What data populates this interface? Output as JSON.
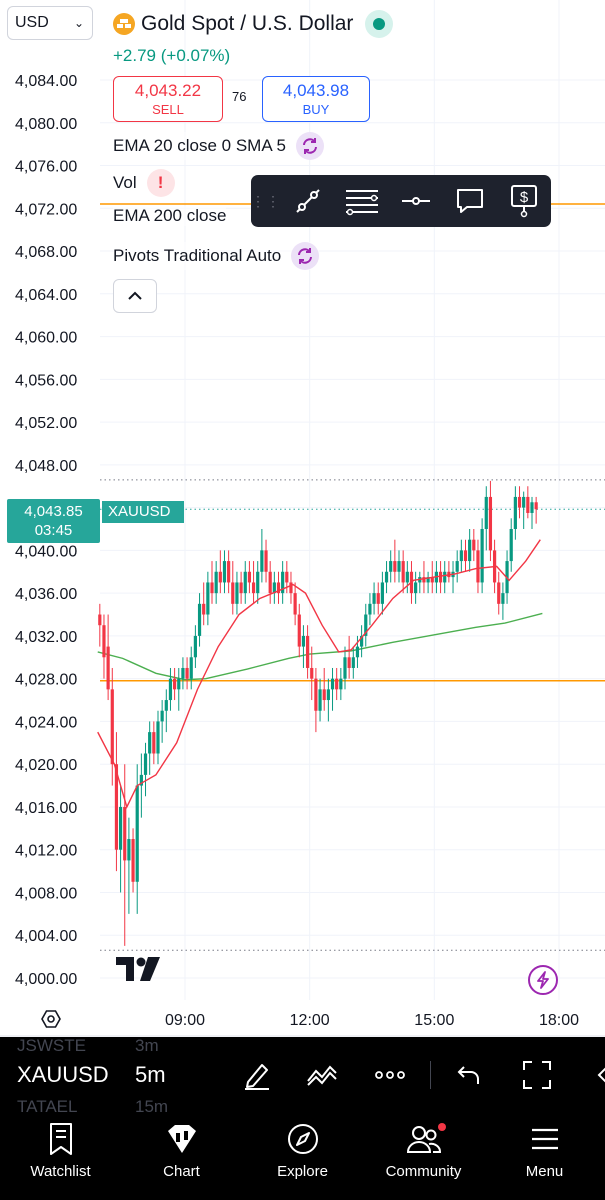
{
  "header": {
    "currency": "USD",
    "title": "Gold Spot / U.S. Dollar",
    "change": "+2.79 (+0.07%)",
    "sell": {
      "price": "4,043.22",
      "label": "SELL"
    },
    "spread": "76",
    "buy": {
      "price": "4,043.98",
      "label": "BUY"
    }
  },
  "indicators": [
    {
      "label": "EMA 20 close 0 SMA 5"
    },
    {
      "label": "Vol"
    },
    {
      "label": "EMA 200 close"
    },
    {
      "label": "Pivots Traditional Auto"
    }
  ],
  "current_price": {
    "price": "4,043.85",
    "countdown": "03:45",
    "symbol": "XAUUSD"
  },
  "colors": {
    "up": "#089981",
    "down": "#f23645",
    "ema20": "#f23645",
    "ema200": "#4caf50",
    "pivot": "#ff9800",
    "accent": "#2962ff"
  },
  "chart_data": {
    "type": "candlestick",
    "symbol": "XAUUSD",
    "y_ticks": [
      "4,084.00",
      "4,080.00",
      "4,076.00",
      "4,072.00",
      "4,068.00",
      "4,064.00",
      "4,060.00",
      "4,056.00",
      "4,052.00",
      "4,048.00",
      "4,044.00",
      "4,040.00",
      "4,036.00",
      "4,032.00",
      "4,028.00",
      "4,024.00",
      "4,020.00",
      "4,016.00",
      "4,012.00",
      "4,008.00",
      "4,004.00",
      "4,000.00"
    ],
    "y_tick_values": [
      4084,
      4080,
      4076,
      4072,
      4068,
      4064,
      4060,
      4056,
      4052,
      4048,
      4044,
      4040,
      4036,
      4032,
      4028,
      4024,
      4020,
      4016,
      4012,
      4008,
      4004,
      4000
    ],
    "ylim": [
      3998,
      4086
    ],
    "x_ticks": [
      "09:00",
      "12:00",
      "15:00",
      "18:00"
    ],
    "x_tick_hours": [
      9,
      12,
      15,
      18
    ],
    "xlim": [
      6.9,
      18.1
    ],
    "pivot_levels": [
      4072.4,
      4027.8
    ],
    "dotted_levels": [
      4046.6,
      4043.85,
      4002.6
    ],
    "ema200": [
      [
        6.9,
        4030.5
      ],
      [
        7.5,
        4029.9
      ],
      [
        8.3,
        4028.5
      ],
      [
        9.0,
        4027.9
      ],
      [
        9.5,
        4028.0
      ],
      [
        10.5,
        4028.9
      ],
      [
        11.5,
        4029.9
      ],
      [
        12.0,
        4030.3
      ],
      [
        13.0,
        4030.6
      ],
      [
        14.0,
        4031.4
      ],
      [
        15.0,
        4032.1
      ],
      [
        16.0,
        4032.8
      ],
      [
        16.7,
        4033.2
      ],
      [
        17.6,
        4034.1
      ]
    ],
    "ema20": [
      [
        6.9,
        4023
      ],
      [
        7.3,
        4020
      ],
      [
        7.6,
        4016
      ],
      [
        7.85,
        4018
      ],
      [
        8.3,
        4019
      ],
      [
        8.8,
        4022
      ],
      [
        9.3,
        4027
      ],
      [
        9.8,
        4031
      ],
      [
        10.3,
        4034
      ],
      [
        10.8,
        4035.5
      ],
      [
        11.3,
        4036.3
      ],
      [
        11.6,
        4036.8
      ],
      [
        11.9,
        4036
      ],
      [
        12.3,
        4033
      ],
      [
        12.7,
        4030.5
      ],
      [
        13.0,
        4030.7
      ],
      [
        13.5,
        4033
      ],
      [
        14.0,
        4035.5
      ],
      [
        14.5,
        4037.2
      ],
      [
        15.0,
        4037.5
      ],
      [
        15.5,
        4037.8
      ],
      [
        16.0,
        4038.3
      ],
      [
        16.5,
        4038.5
      ],
      [
        16.8,
        4037.2
      ],
      [
        17.2,
        4039
      ],
      [
        17.55,
        4041
      ]
    ],
    "candles": [
      {
        "t": 6.95,
        "o": 4034,
        "h": 4035,
        "l": 4031,
        "c": 4033
      },
      {
        "t": 7.05,
        "o": 4033,
        "h": 4034,
        "l": 4028,
        "c": 4030
      },
      {
        "t": 7.15,
        "o": 4031,
        "h": 4034,
        "l": 4026,
        "c": 4027
      },
      {
        "t": 7.25,
        "o": 4027,
        "h": 4029,
        "l": 4018,
        "c": 4020
      },
      {
        "t": 7.35,
        "o": 4020,
        "h": 4023,
        "l": 4010,
        "c": 4012
      },
      {
        "t": 7.45,
        "o": 4012,
        "h": 4018,
        "l": 4008,
        "c": 4016
      },
      {
        "t": 7.55,
        "o": 4016,
        "h": 4020,
        "l": 4003,
        "c": 4011
      },
      {
        "t": 7.65,
        "o": 4011,
        "h": 4015,
        "l": 4006,
        "c": 4013
      },
      {
        "t": 7.75,
        "o": 4013,
        "h": 4014,
        "l": 4008,
        "c": 4009
      },
      {
        "t": 7.85,
        "o": 4009,
        "h": 4020,
        "l": 4006,
        "c": 4018
      },
      {
        "t": 7.95,
        "o": 4018,
        "h": 4021,
        "l": 4015,
        "c": 4019
      },
      {
        "t": 8.05,
        "o": 4019,
        "h": 4022,
        "l": 4017,
        "c": 4021
      },
      {
        "t": 8.15,
        "o": 4021,
        "h": 4024,
        "l": 4019,
        "c": 4023
      },
      {
        "t": 8.25,
        "o": 4023,
        "h": 4024,
        "l": 4020,
        "c": 4021
      },
      {
        "t": 8.35,
        "o": 4021,
        "h": 4025,
        "l": 4020,
        "c": 4024
      },
      {
        "t": 8.45,
        "o": 4024,
        "h": 4026,
        "l": 4022,
        "c": 4025
      },
      {
        "t": 8.55,
        "o": 4025,
        "h": 4027,
        "l": 4023,
        "c": 4026
      },
      {
        "t": 8.65,
        "o": 4026,
        "h": 4029,
        "l": 4025,
        "c": 4028
      },
      {
        "t": 8.75,
        "o": 4028,
        "h": 4029,
        "l": 4026,
        "c": 4027
      },
      {
        "t": 8.85,
        "o": 4027,
        "h": 4029,
        "l": 4025,
        "c": 4028
      },
      {
        "t": 8.95,
        "o": 4028,
        "h": 4030,
        "l": 4027,
        "c": 4029
      },
      {
        "t": 9.05,
        "o": 4029,
        "h": 4030,
        "l": 4027,
        "c": 4028
      },
      {
        "t": 9.15,
        "o": 4028,
        "h": 4031,
        "l": 4027,
        "c": 4030
      },
      {
        "t": 9.25,
        "o": 4030,
        "h": 4033,
        "l": 4029,
        "c": 4032
      },
      {
        "t": 9.35,
        "o": 4032,
        "h": 4036,
        "l": 4031,
        "c": 4035
      },
      {
        "t": 9.45,
        "o": 4035,
        "h": 4037,
        "l": 4033,
        "c": 4034
      },
      {
        "t": 9.55,
        "o": 4034,
        "h": 4038,
        "l": 4033,
        "c": 4037
      },
      {
        "t": 9.65,
        "o": 4037,
        "h": 4039,
        "l": 4035,
        "c": 4036
      },
      {
        "t": 9.75,
        "o": 4036,
        "h": 4039,
        "l": 4035,
        "c": 4038
      },
      {
        "t": 9.85,
        "o": 4038,
        "h": 4040,
        "l": 4036,
        "c": 4037
      },
      {
        "t": 9.95,
        "o": 4037,
        "h": 4040,
        "l": 4036,
        "c": 4039
      },
      {
        "t": 10.05,
        "o": 4039,
        "h": 4040,
        "l": 4036,
        "c": 4037
      },
      {
        "t": 10.15,
        "o": 4037,
        "h": 4039,
        "l": 4034,
        "c": 4035
      },
      {
        "t": 10.25,
        "o": 4035,
        "h": 4038,
        "l": 4034,
        "c": 4037
      },
      {
        "t": 10.35,
        "o": 4037,
        "h": 4038,
        "l": 4035,
        "c": 4036
      },
      {
        "t": 10.45,
        "o": 4036,
        "h": 4039,
        "l": 4035,
        "c": 4038
      },
      {
        "t": 10.55,
        "o": 4038,
        "h": 4039,
        "l": 4036,
        "c": 4037
      },
      {
        "t": 10.65,
        "o": 4037,
        "h": 4039,
        "l": 4035,
        "c": 4036
      },
      {
        "t": 10.75,
        "o": 4036,
        "h": 4039,
        "l": 4035,
        "c": 4038
      },
      {
        "t": 10.85,
        "o": 4038,
        "h": 4042,
        "l": 4037,
        "c": 4040
      },
      {
        "t": 10.95,
        "o": 4040,
        "h": 4041,
        "l": 4037,
        "c": 4038
      },
      {
        "t": 11.05,
        "o": 4038,
        "h": 4039,
        "l": 4035,
        "c": 4036
      },
      {
        "t": 11.15,
        "o": 4036,
        "h": 4038,
        "l": 4035,
        "c": 4037
      },
      {
        "t": 11.25,
        "o": 4037,
        "h": 4038,
        "l": 4035,
        "c": 4036
      },
      {
        "t": 11.35,
        "o": 4036,
        "h": 4039,
        "l": 4035,
        "c": 4038
      },
      {
        "t": 11.45,
        "o": 4038,
        "h": 4039,
        "l": 4036,
        "c": 4037
      },
      {
        "t": 11.55,
        "o": 4037,
        "h": 4038,
        "l": 4035,
        "c": 4036
      },
      {
        "t": 11.65,
        "o": 4036,
        "h": 4037,
        "l": 4033,
        "c": 4034
      },
      {
        "t": 11.75,
        "o": 4034,
        "h": 4035,
        "l": 4030,
        "c": 4031
      },
      {
        "t": 11.85,
        "o": 4031,
        "h": 4033,
        "l": 4029,
        "c": 4032
      },
      {
        "t": 11.95,
        "o": 4032,
        "h": 4033,
        "l": 4028,
        "c": 4029
      },
      {
        "t": 12.05,
        "o": 4029,
        "h": 4031,
        "l": 4026,
        "c": 4028
      },
      {
        "t": 12.15,
        "o": 4028,
        "h": 4029,
        "l": 4023,
        "c": 4025
      },
      {
        "t": 12.25,
        "o": 4025,
        "h": 4028,
        "l": 4024,
        "c": 4027
      },
      {
        "t": 12.35,
        "o": 4027,
        "h": 4029,
        "l": 4025,
        "c": 4026
      },
      {
        "t": 12.45,
        "o": 4026,
        "h": 4028,
        "l": 4024,
        "c": 4027
      },
      {
        "t": 12.55,
        "o": 4027,
        "h": 4029,
        "l": 4025,
        "c": 4028
      },
      {
        "t": 12.65,
        "o": 4028,
        "h": 4029,
        "l": 4026,
        "c": 4027
      },
      {
        "t": 12.75,
        "o": 4027,
        "h": 4029,
        "l": 4026,
        "c": 4028
      },
      {
        "t": 12.85,
        "o": 4028,
        "h": 4031,
        "l": 4027,
        "c": 4030
      },
      {
        "t": 12.95,
        "o": 4030,
        "h": 4032,
        "l": 4028,
        "c": 4029
      },
      {
        "t": 13.05,
        "o": 4029,
        "h": 4031,
        "l": 4028,
        "c": 4030
      },
      {
        "t": 13.15,
        "o": 4030,
        "h": 4032,
        "l": 4029,
        "c": 4031
      },
      {
        "t": 13.25,
        "o": 4031,
        "h": 4033,
        "l": 4030,
        "c": 4032
      },
      {
        "t": 13.35,
        "o": 4032,
        "h": 4035,
        "l": 4031,
        "c": 4034
      },
      {
        "t": 13.45,
        "o": 4034,
        "h": 4036,
        "l": 4033,
        "c": 4035
      },
      {
        "t": 13.55,
        "o": 4035,
        "h": 4037,
        "l": 4034,
        "c": 4036
      },
      {
        "t": 13.65,
        "o": 4036,
        "h": 4037,
        "l": 4034,
        "c": 4035
      },
      {
        "t": 13.75,
        "o": 4035,
        "h": 4038,
        "l": 4034,
        "c": 4037
      },
      {
        "t": 13.85,
        "o": 4037,
        "h": 4039,
        "l": 4036,
        "c": 4038
      },
      {
        "t": 13.95,
        "o": 4038,
        "h": 4040,
        "l": 4037,
        "c": 4039
      },
      {
        "t": 14.05,
        "o": 4039,
        "h": 4041,
        "l": 4037,
        "c": 4038
      },
      {
        "t": 14.15,
        "o": 4038,
        "h": 4040,
        "l": 4037,
        "c": 4039
      },
      {
        "t": 14.25,
        "o": 4039,
        "h": 4040,
        "l": 4036,
        "c": 4037
      },
      {
        "t": 14.35,
        "o": 4037,
        "h": 4039,
        "l": 4036,
        "c": 4038
      },
      {
        "t": 14.45,
        "o": 4038,
        "h": 4039,
        "l": 4035,
        "c": 4036
      },
      {
        "t": 14.55,
        "o": 4036,
        "h": 4038,
        "l": 4035,
        "c": 4037
      },
      {
        "t": 14.65,
        "o": 4037,
        "h": 4038,
        "l": 4036,
        "c": 4037.5
      },
      {
        "t": 14.75,
        "o": 4037.5,
        "h": 4039,
        "l": 4036,
        "c": 4037
      },
      {
        "t": 14.85,
        "o": 4037,
        "h": 4038,
        "l": 4036,
        "c": 4037.5
      },
      {
        "t": 14.95,
        "o": 4037.5,
        "h": 4039,
        "l": 4036,
        "c": 4037
      },
      {
        "t": 15.05,
        "o": 4037,
        "h": 4039,
        "l": 4036,
        "c": 4038
      },
      {
        "t": 15.15,
        "o": 4038,
        "h": 4039,
        "l": 4036,
        "c": 4037
      },
      {
        "t": 15.25,
        "o": 4037,
        "h": 4039,
        "l": 4036,
        "c": 4038
      },
      {
        "t": 15.35,
        "o": 4038,
        "h": 4039,
        "l": 4037,
        "c": 4037.5
      },
      {
        "t": 15.45,
        "o": 4037.5,
        "h": 4039,
        "l": 4036,
        "c": 4038
      },
      {
        "t": 15.55,
        "o": 4038,
        "h": 4040,
        "l": 4037,
        "c": 4039
      },
      {
        "t": 15.65,
        "o": 4039,
        "h": 4041,
        "l": 4038,
        "c": 4040
      },
      {
        "t": 15.75,
        "o": 4040,
        "h": 4041,
        "l": 4038,
        "c": 4039
      },
      {
        "t": 15.85,
        "o": 4039,
        "h": 4042,
        "l": 4038,
        "c": 4041
      },
      {
        "t": 15.95,
        "o": 4041,
        "h": 4042,
        "l": 4039,
        "c": 4040
      },
      {
        "t": 16.05,
        "o": 4040,
        "h": 4041,
        "l": 4036,
        "c": 4037
      },
      {
        "t": 16.15,
        "o": 4037,
        "h": 4043,
        "l": 4036,
        "c": 4042
      },
      {
        "t": 16.25,
        "o": 4042,
        "h": 4046,
        "l": 4040,
        "c": 4045
      },
      {
        "t": 16.35,
        "o": 4045,
        "h": 4046.5,
        "l": 4039,
        "c": 4040
      },
      {
        "t": 16.45,
        "o": 4040,
        "h": 4041,
        "l": 4036,
        "c": 4037
      },
      {
        "t": 16.55,
        "o": 4037,
        "h": 4038,
        "l": 4034,
        "c": 4035
      },
      {
        "t": 16.65,
        "o": 4035,
        "h": 4037,
        "l": 4033.5,
        "c": 4036
      },
      {
        "t": 16.75,
        "o": 4036,
        "h": 4040,
        "l": 4035,
        "c": 4039
      },
      {
        "t": 16.85,
        "o": 4039,
        "h": 4043,
        "l": 4038,
        "c": 4042
      },
      {
        "t": 16.95,
        "o": 4042,
        "h": 4046,
        "l": 4041,
        "c": 4045
      },
      {
        "t": 17.05,
        "o": 4045,
        "h": 4046,
        "l": 4043,
        "c": 4044
      },
      {
        "t": 17.15,
        "o": 4044,
        "h": 4045.5,
        "l": 4042,
        "c": 4045
      },
      {
        "t": 17.25,
        "o": 4045,
        "h": 4046,
        "l": 4043,
        "c": 4043.5
      },
      {
        "t": 17.35,
        "o": 4043.5,
        "h": 4045,
        "l": 4042,
        "c": 4044.5
      },
      {
        "t": 17.45,
        "o": 4044.5,
        "h": 4045,
        "l": 4042.5,
        "c": 4043.85
      }
    ]
  },
  "toolbar": {
    "ghost_top": "JSWSTE",
    "ghost_top_interval": "3m",
    "ghost_bottom": "TATAEL",
    "ghost_bottom_interval": "15m",
    "symbol": "XAUUSD",
    "interval": "5m"
  },
  "nav": [
    {
      "label": "Watchlist",
      "icon": "watchlist-icon"
    },
    {
      "label": "Chart",
      "icon": "chart-icon"
    },
    {
      "label": "Explore",
      "icon": "compass-icon"
    },
    {
      "label": "Community",
      "icon": "community-icon"
    },
    {
      "label": "Menu",
      "icon": "menu-icon"
    }
  ]
}
